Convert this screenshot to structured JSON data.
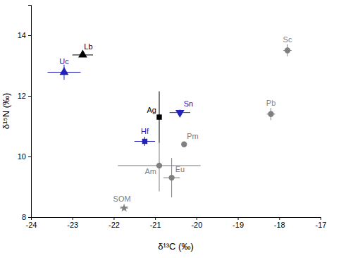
{
  "chart_data": {
    "type": "scatter",
    "x_label": "δ¹³C (‰)",
    "y_label": "δ¹⁵N (‰)",
    "xlim": [
      -24,
      -17
    ],
    "ylim": [
      8,
      15
    ],
    "xticks": [
      -24,
      -23,
      -22,
      -21,
      -20,
      -19,
      -18,
      -17
    ],
    "yticks": [
      8,
      10,
      12,
      14
    ],
    "grid": false,
    "series": [
      {
        "name": "Lb",
        "color": "#000000",
        "marker": "triangle",
        "x": [
          -22.75
        ],
        "values": [
          13.35
        ],
        "x_error": [
          0.25
        ],
        "y_error": [
          0.05
        ]
      },
      {
        "name": "Uc",
        "color": "#2222bb",
        "marker": "triangle",
        "x": [
          -23.2
        ],
        "values": [
          12.78
        ],
        "x_error": [
          0.4
        ],
        "y_error": [
          0.25
        ]
      },
      {
        "name": "Ag",
        "color": "#000000",
        "marker": "square",
        "x": [
          -20.9
        ],
        "values": [
          11.3
        ],
        "x_error": [
          0.0
        ],
        "y_error": [
          0.85
        ]
      },
      {
        "name": "Sn",
        "color": "#2222bb",
        "marker": "triangle-down",
        "x": [
          -20.4
        ],
        "values": [
          11.45
        ],
        "x_error": [
          0.25
        ],
        "y_error": [
          0.1
        ]
      },
      {
        "name": "Hf",
        "color": "#2222bb",
        "marker": "square",
        "x": [
          -21.25
        ],
        "values": [
          10.5
        ],
        "x_error": [
          0.25
        ],
        "y_error": [
          0.15
        ]
      },
      {
        "name": "Pm",
        "color": "#808080",
        "marker": "circle",
        "x": [
          -20.3
        ],
        "values": [
          10.4
        ],
        "x_error": [
          0.0
        ],
        "y_error": [
          0.0
        ]
      },
      {
        "name": "Am",
        "color": "#808080",
        "marker": "circle",
        "x": [
          -20.9
        ],
        "values": [
          9.7
        ],
        "x_error": [
          1.0
        ],
        "y_error": [
          0.85
        ]
      },
      {
        "name": "Eu",
        "color": "#808080",
        "marker": "circle",
        "x": [
          -20.6
        ],
        "values": [
          9.3
        ],
        "x_error": [
          0.2
        ],
        "y_error": [
          0.65
        ]
      },
      {
        "name": "SOM",
        "color": "#808080",
        "marker": "star",
        "x": [
          -21.75
        ],
        "values": [
          8.3
        ],
        "x_error": [
          0.1
        ],
        "y_error": [
          0.08
        ]
      },
      {
        "name": "Pb",
        "color": "#808080",
        "marker": "circle",
        "x": [
          -18.2
        ],
        "values": [
          11.4
        ],
        "x_error": [
          0.1
        ],
        "y_error": [
          0.2
        ]
      },
      {
        "name": "Sc",
        "color": "#808080",
        "marker": "circle",
        "x": [
          -17.8
        ],
        "values": [
          13.5
        ],
        "x_error": [
          0.1
        ],
        "y_error": [
          0.2
        ]
      }
    ]
  }
}
